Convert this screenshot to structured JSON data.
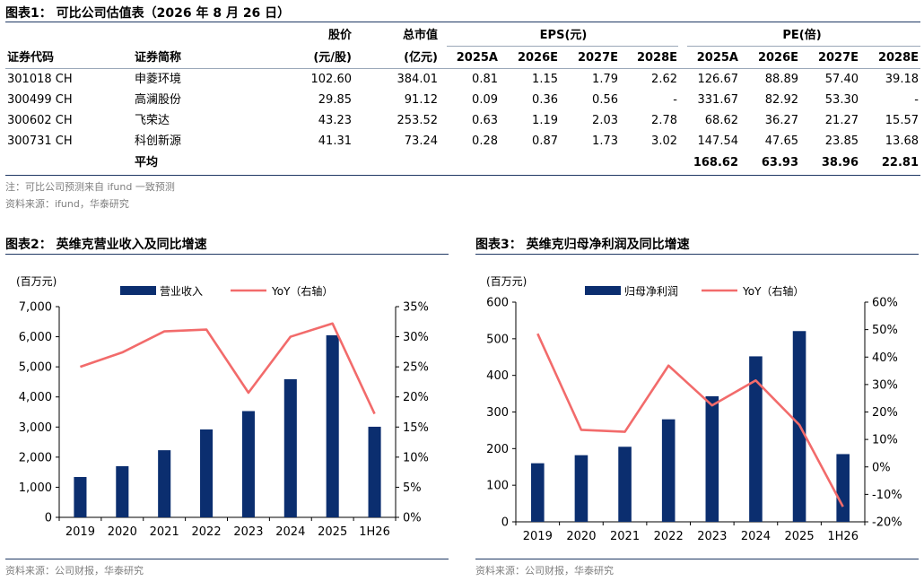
{
  "fig1": {
    "title": "图表1：  可比公司估值表（2026 年 8 月 26 日）",
    "header_top": {
      "price": "股价",
      "mcap": "总市值",
      "eps_group": "EPS(元)",
      "pe_group": "PE(倍)"
    },
    "header_sub": {
      "code": "证券代码",
      "name": "证券简称",
      "price_unit": "(元/股)",
      "mcap_unit": "(亿元)",
      "years": [
        "2025A",
        "2026E",
        "2027E",
        "2028E",
        "2025A",
        "2026E",
        "2027E",
        "2028E"
      ]
    },
    "rows": [
      {
        "code": "301018 CH",
        "name": "申菱环境",
        "price": "102.60",
        "mcap": "384.01",
        "eps": [
          "0.81",
          "1.15",
          "1.79",
          "2.62"
        ],
        "pe": [
          "126.67",
          "88.89",
          "57.40",
          "39.18"
        ]
      },
      {
        "code": "300499 CH",
        "name": "高澜股份",
        "price": "29.85",
        "mcap": "91.12",
        "eps": [
          "0.09",
          "0.36",
          "0.56",
          "-"
        ],
        "pe": [
          "331.67",
          "82.92",
          "53.30",
          "-"
        ]
      },
      {
        "code": "300602 CH",
        "name": "飞荣达",
        "price": "43.23",
        "mcap": "253.52",
        "eps": [
          "0.63",
          "1.19",
          "2.03",
          "2.78"
        ],
        "pe": [
          "68.62",
          "36.27",
          "21.27",
          "15.57"
        ]
      },
      {
        "code": "300731 CH",
        "name": "科创新源",
        "price": "41.31",
        "mcap": "73.24",
        "eps": [
          "0.28",
          "0.87",
          "1.73",
          "3.02"
        ],
        "pe": [
          "147.54",
          "47.65",
          "23.85",
          "13.68"
        ]
      }
    ],
    "avg": {
      "label": "平均",
      "pe": [
        "168.62",
        "63.93",
        "38.96",
        "22.81"
      ]
    },
    "note": "注：可比公司预测来自 ifund 一致预测",
    "source": "资料来源：ifund，华泰研究"
  },
  "fig2": {
    "title": "图表2：  英维克营业收入及同比增速",
    "source": "资料来源：公司财报，华泰研究"
  },
  "fig3": {
    "title": "图表3：  英维克归母净利润及同比增速",
    "source": "资料来源：公司财报，华泰研究"
  },
  "chart_data": [
    {
      "type": "bar",
      "unit_label": "(百万元)",
      "categories": [
        "2019",
        "2020",
        "2021",
        "2022",
        "2023",
        "2024",
        "2025",
        "1H26"
      ],
      "series": [
        {
          "name": "营业收入",
          "kind": "bar",
          "axis": "left",
          "color": "#0b2e6f",
          "values": [
            1340,
            1700,
            2230,
            2920,
            3530,
            4590,
            6050,
            3010
          ]
        },
        {
          "name": "YoY（右轴）",
          "kind": "line",
          "axis": "right",
          "color": "#f26b6b",
          "values": [
            25.0,
            27.4,
            30.9,
            31.2,
            20.7,
            30.0,
            32.2,
            17.2
          ]
        }
      ],
      "ylim_left": [
        0,
        7000
      ],
      "yticks_left": [
        "0",
        "1,000",
        "2,000",
        "3,000",
        "4,000",
        "5,000",
        "6,000",
        "7,000"
      ],
      "ylim_right": [
        0,
        35
      ],
      "yticks_right": [
        "0%",
        "5%",
        "10%",
        "15%",
        "20%",
        "25%",
        "30%",
        "35%"
      ],
      "grid": false,
      "legend": "top"
    },
    {
      "type": "bar",
      "unit_label": "(百万元)",
      "categories": [
        "2019",
        "2020",
        "2021",
        "2022",
        "2023",
        "2024",
        "2025",
        "1H26"
      ],
      "series": [
        {
          "name": "归母净利润",
          "kind": "bar",
          "axis": "left",
          "color": "#0b2e6f",
          "values": [
            160,
            182,
            205,
            280,
            343,
            452,
            521,
            185
          ]
        },
        {
          "name": "YoY（右轴）",
          "kind": "line",
          "axis": "right",
          "color": "#f26b6b",
          "values": [
            48.5,
            13.5,
            12.8,
            36.9,
            22.4,
            31.5,
            15.3,
            -14.5
          ]
        }
      ],
      "ylim_left": [
        0,
        600
      ],
      "yticks_left": [
        "0",
        "100",
        "200",
        "300",
        "400",
        "500",
        "600"
      ],
      "ylim_right": [
        -20,
        60
      ],
      "yticks_right": [
        "-20%",
        "-10%",
        "0%",
        "10%",
        "20%",
        "30%",
        "40%",
        "50%",
        "60%"
      ],
      "grid": false,
      "legend": "top"
    }
  ]
}
